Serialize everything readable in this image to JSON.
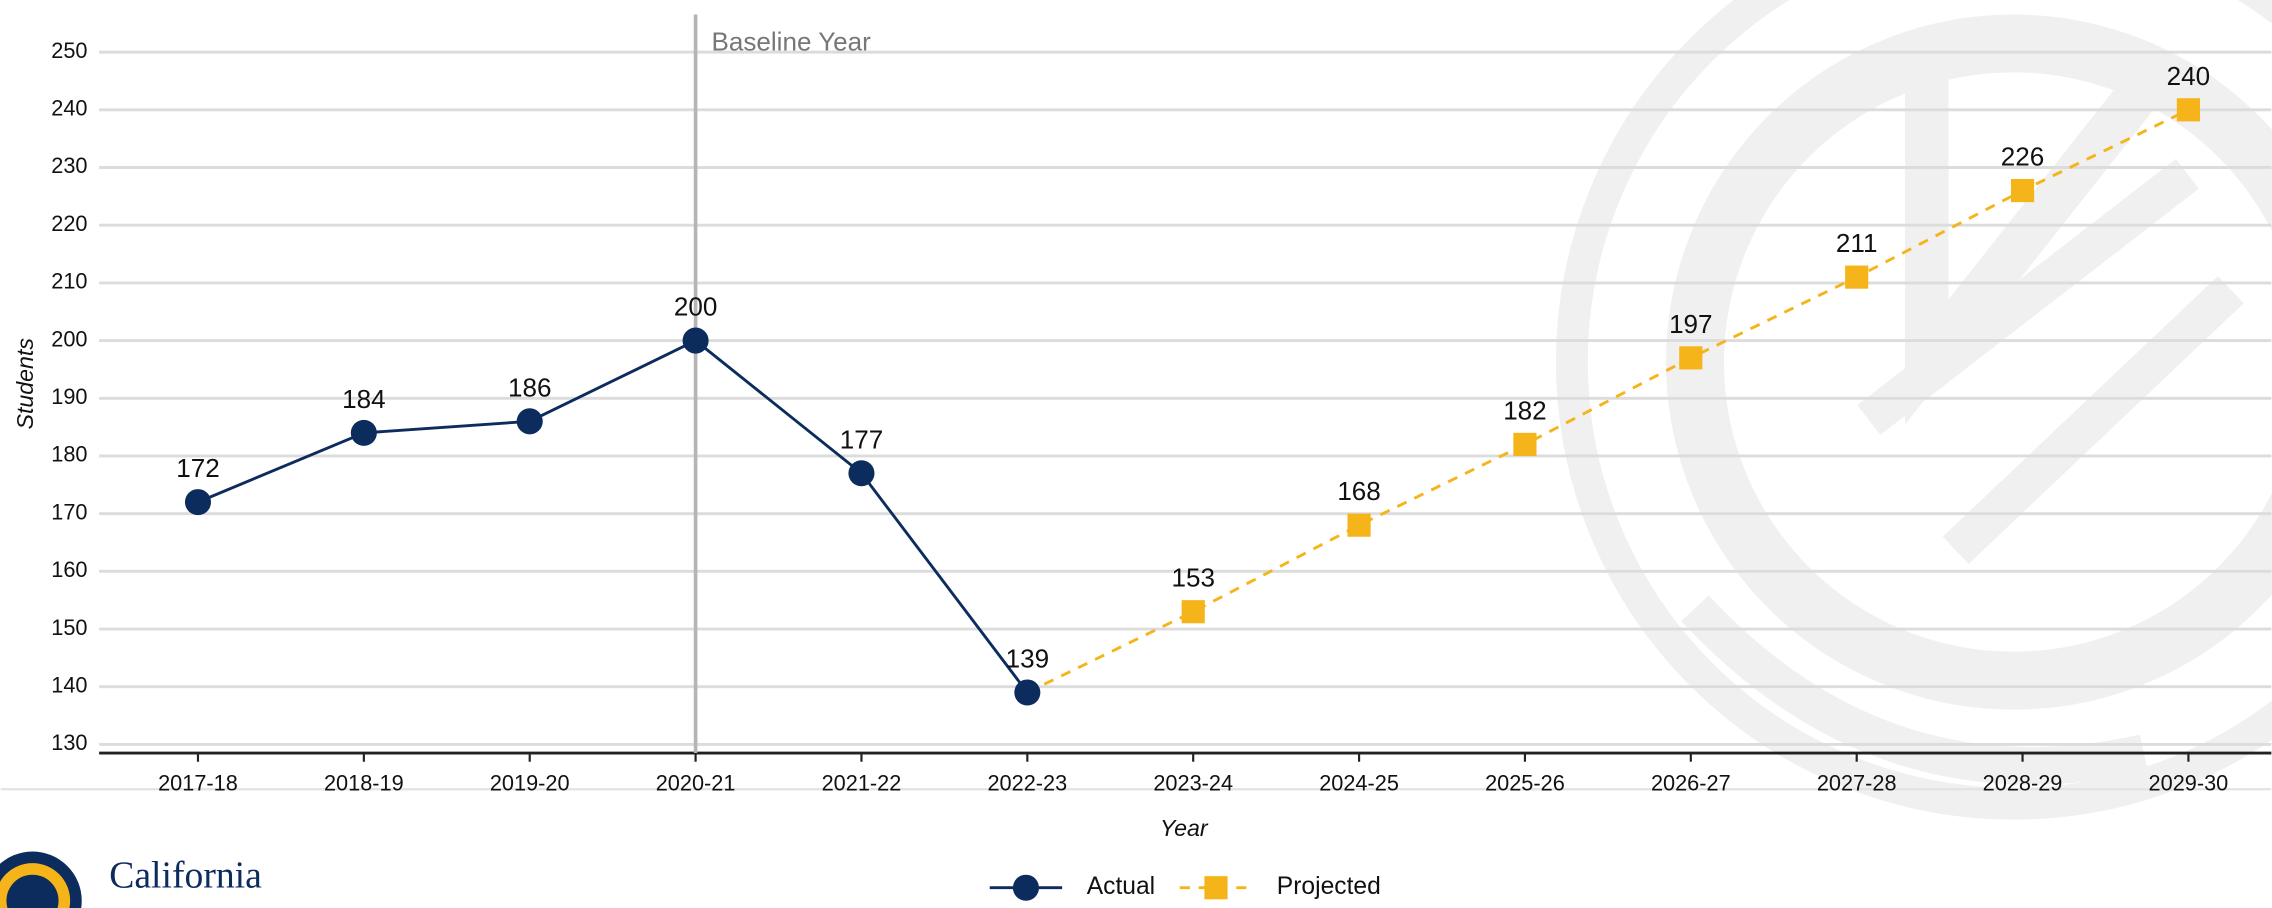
{
  "chart_data": {
    "type": "line",
    "annotation": "Baseline Year",
    "baseline_category": "2020-21",
    "x_label": "Year",
    "y_label": "Students",
    "categories": [
      "2017-18",
      "2018-19",
      "2019-20",
      "2020-21",
      "2021-22",
      "2022-23",
      "2023-24",
      "2024-25",
      "2025-26",
      "2026-27",
      "2027-28",
      "2028-29",
      "2029-30"
    ],
    "series": [
      {
        "name": "Actual",
        "color": "#0d2c5e",
        "marker": "circle",
        "dashed": false,
        "values": [
          172,
          184,
          186,
          200,
          177,
          139,
          null,
          null,
          null,
          null,
          null,
          null,
          null
        ]
      },
      {
        "name": "Projected",
        "color": "#f5b41a",
        "marker": "square",
        "dashed": true,
        "values": [
          null,
          null,
          null,
          null,
          null,
          139,
          153,
          168,
          182,
          197,
          211,
          226,
          240
        ]
      }
    ],
    "ylim": [
      128.5,
      250
    ],
    "yticks": [
      130,
      140,
      150,
      160,
      170,
      180,
      190,
      200,
      210,
      220,
      230,
      240,
      250
    ],
    "grid": true,
    "logo_text": "California"
  }
}
